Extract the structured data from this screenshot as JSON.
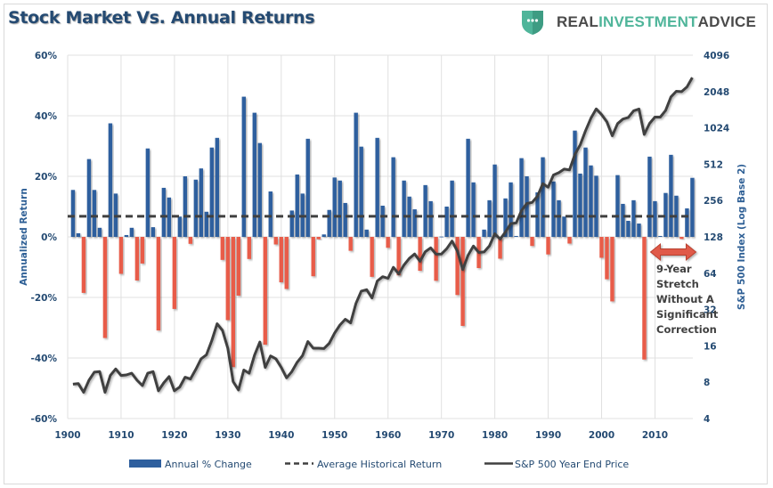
{
  "header": {
    "title": "Stock Market Vs. Annual Returns",
    "brand": {
      "part1": "REAL ",
      "part2": "INVESTMENT",
      "part3": " ADVICE",
      "icon": "shield-dots-icon"
    }
  },
  "colors": {
    "positive": "#2e5f9e",
    "negative": "#e85c4a",
    "line": "#404040",
    "avg": "#404040",
    "grid": "#e0e0e0",
    "arrow": "#e05a48",
    "brand_accent": "#4fb59a"
  },
  "chart_data": {
    "type": "bar+line",
    "title": "Stock Market Vs. Annual Returns",
    "ylabel": "Annualized Return",
    "y2label": "S&P 500 Index (Log Base 2)",
    "ylim": [
      -0.6,
      0.6
    ],
    "yticks": [
      0.6,
      0.4,
      0.2,
      0,
      -0.2,
      -0.4,
      -0.6
    ],
    "ytick_labels": [
      "60%",
      "40%",
      "20%",
      "0%",
      "-20%",
      "-40%",
      "-60%"
    ],
    "y2lim": [
      4,
      4096
    ],
    "y2ticks": [
      4096,
      2048,
      1024,
      512,
      256,
      128,
      64,
      32,
      16,
      8,
      4
    ],
    "y2_scale": "log2",
    "xlim": [
      1900,
      2018
    ],
    "xticks": [
      1900,
      1910,
      1920,
      1930,
      1940,
      1950,
      1960,
      1970,
      1980,
      1990,
      2000,
      2010
    ],
    "grid": true,
    "legend_position": "bottom",
    "legend": [
      {
        "label": "Annual % Change",
        "kind": "bar"
      },
      {
        "label": "Average Historical Return",
        "kind": "dashed"
      },
      {
        "label": "S&P 500 Year End Price",
        "kind": "line"
      }
    ],
    "average_return": 0.068,
    "years": [
      1901,
      1902,
      1903,
      1904,
      1905,
      1906,
      1907,
      1908,
      1909,
      1910,
      1911,
      1912,
      1913,
      1914,
      1915,
      1916,
      1917,
      1918,
      1919,
      1920,
      1921,
      1922,
      1923,
      1924,
      1925,
      1926,
      1927,
      1928,
      1929,
      1930,
      1931,
      1932,
      1933,
      1934,
      1935,
      1936,
      1937,
      1938,
      1939,
      1940,
      1941,
      1942,
      1943,
      1944,
      1945,
      1946,
      1947,
      1948,
      1949,
      1950,
      1951,
      1952,
      1953,
      1954,
      1955,
      1956,
      1957,
      1958,
      1959,
      1960,
      1961,
      1962,
      1963,
      1964,
      1965,
      1966,
      1967,
      1968,
      1969,
      1970,
      1971,
      1972,
      1973,
      1974,
      1975,
      1976,
      1977,
      1978,
      1979,
      1980,
      1981,
      1982,
      1983,
      1984,
      1985,
      1986,
      1987,
      1988,
      1989,
      1990,
      1991,
      1992,
      1993,
      1994,
      1995,
      1996,
      1997,
      1998,
      1999,
      2000,
      2001,
      2002,
      2003,
      2004,
      2005,
      2006,
      2007,
      2008,
      2009,
      2010,
      2011,
      2012,
      2013,
      2014,
      2015,
      2016,
      2017
    ],
    "annual_change": [
      0.155,
      0.012,
      -0.185,
      0.257,
      0.155,
      0.03,
      -0.334,
      0.375,
      0.143,
      -0.122,
      0.006,
      0.03,
      -0.144,
      -0.088,
      0.292,
      0.032,
      -0.309,
      0.162,
      0.13,
      -0.238,
      0.067,
      0.2,
      -0.023,
      0.189,
      0.226,
      0.083,
      0.295,
      0.327,
      -0.076,
      -0.275,
      -0.43,
      -0.194,
      0.463,
      -0.073,
      0.41,
      0.31,
      -0.356,
      0.15,
      -0.025,
      -0.15,
      -0.172,
      0.087,
      0.206,
      0.143,
      0.324,
      -0.13,
      -0.008,
      0.008,
      0.089,
      0.196,
      0.186,
      0.112,
      -0.046,
      0.41,
      0.298,
      0.024,
      -0.132,
      0.327,
      0.103,
      -0.036,
      0.263,
      -0.127,
      0.186,
      0.133,
      0.091,
      -0.112,
      0.171,
      0.118,
      -0.145,
      0.001,
      0.1,
      0.186,
      -0.192,
      -0.294,
      0.324,
      0.18,
      -0.103,
      0.024,
      0.121,
      0.239,
      -0.072,
      0.127,
      0.18,
      0.003,
      0.26,
      0.2,
      -0.03,
      0.147,
      0.263,
      -0.058,
      0.183,
      0.121,
      0.067,
      -0.022,
      0.351,
      0.209,
      0.295,
      0.236,
      0.202,
      -0.069,
      -0.14,
      -0.213,
      0.204,
      0.109,
      0.053,
      0.121,
      0.044,
      -0.405,
      0.265,
      0.118,
      0.003,
      0.145,
      0.271,
      0.136,
      -0.007,
      0.094,
      0.195
    ],
    "sp500_year_end": [
      7.7,
      7.8,
      6.6,
      8.3,
      9.7,
      9.8,
      6.6,
      9.1,
      10.3,
      9.1,
      9.2,
      9.5,
      8.3,
      7.5,
      9.5,
      9.8,
      6.8,
      7.9,
      8.9,
      6.8,
      7.3,
      8.8,
      8.5,
      10.2,
      12.5,
      13.5,
      17.7,
      24.4,
      21.5,
      15.3,
      8.1,
      6.9,
      10.1,
      9.5,
      13.4,
      17.2,
      10.6,
      13.2,
      12.5,
      10.6,
      8.7,
      9.8,
      11.7,
      13.3,
      17.4,
      15.3,
      15.3,
      15.2,
      16.8,
      20.4,
      23.8,
      26.6,
      24.8,
      36.0,
      45.5,
      46.7,
      39.9,
      55.2,
      59.9,
      58.1,
      71.6,
      63.1,
      75.0,
      84.8,
      92.4,
      80.3,
      96.5,
      103.9,
      92.1,
      92.2,
      102.1,
      118.1,
      97.6,
      68.6,
      90.2,
      107.5,
      95.1,
      96.1,
      107.9,
      135.8,
      122.6,
      140.6,
      164.9,
      167.2,
      211.3,
      242.2,
      247.1,
      277.7,
      353.4,
      330.2,
      417.1,
      435.7,
      466.5,
      459.3,
      615.9,
      740.7,
      970.4,
      1229.2,
      1469.3,
      1320.3,
      1148.1,
      879.8,
      1111.9,
      1211.9,
      1248.3,
      1418.3,
      1468.4,
      903.3,
      1115.1,
      1257.6,
      1257.6,
      1426.2,
      1848.4,
      2058.9,
      2043.9,
      2238.8,
      2673.6
    ],
    "annotation": {
      "lines": [
        "9-Year",
        "Stretch",
        "Without A",
        "Significant",
        "Correction"
      ],
      "arrow_from": 2009,
      "arrow_to": 2017
    }
  }
}
